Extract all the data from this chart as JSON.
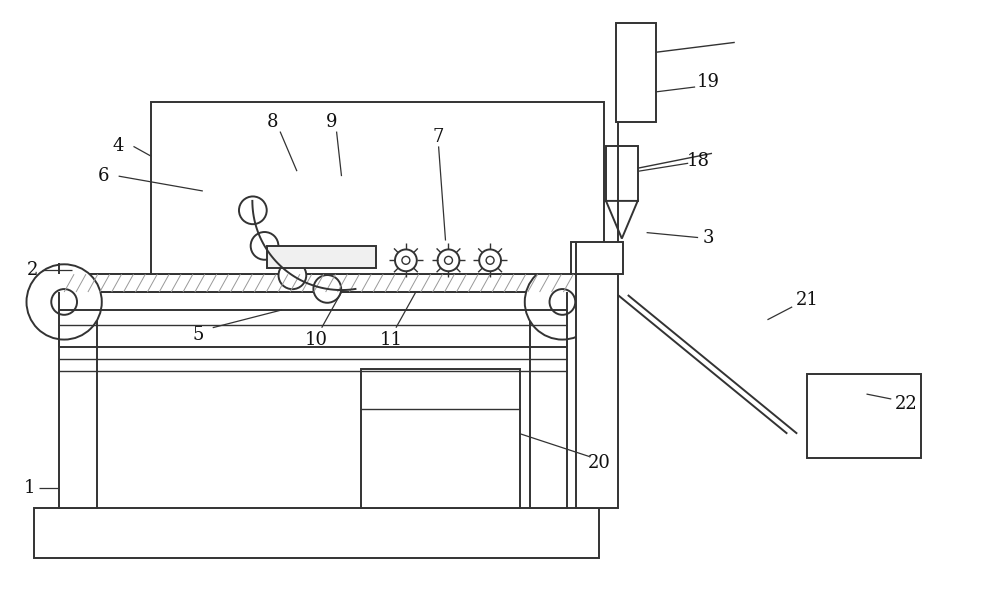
{
  "bg_color": "#ffffff",
  "line_color": "#333333",
  "label_color": "#111111",
  "figsize": [
    10.0,
    5.9
  ],
  "dpi": 100
}
